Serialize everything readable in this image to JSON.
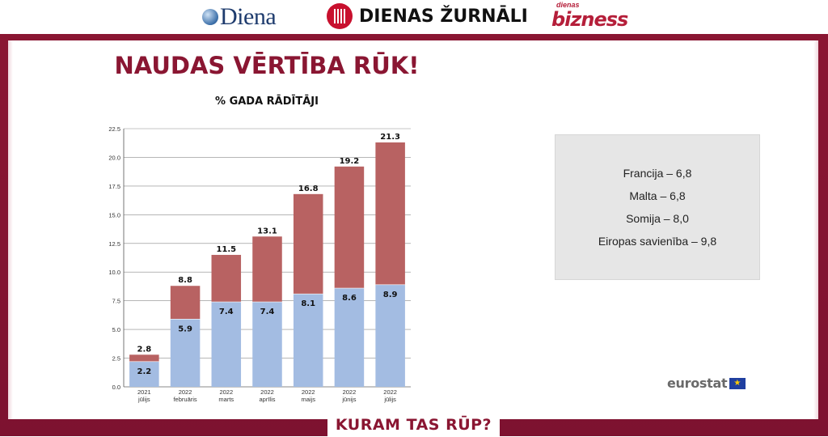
{
  "logos": {
    "diena": "Diena",
    "dienas_zurnali": "DIENAS ŽURNĀLI",
    "dienas_bizness_top": "dienas",
    "dienas_bizness": "bizness"
  },
  "headline": "NAUDAS VĒRTĪBA RŪK!",
  "footer_label": "KURAM TAS RŪP?",
  "info_box": {
    "lines": [
      "Francija – 6,8",
      "Malta – 6,8",
      "Somija – 8,0",
      "Eiropas savienība – 9,8"
    ]
  },
  "source": "eurostat",
  "colors": {
    "brand": "#8a1632",
    "bottom_series": "#a3bce2",
    "top_series": "#b86262"
  },
  "chart_data": {
    "type": "bar",
    "stacked": true,
    "title": "% GADA RĀDĪTĀJI",
    "categories": [
      [
        "2021",
        "jūlijs"
      ],
      [
        "2022",
        "februāris"
      ],
      [
        "2022",
        "marts"
      ],
      [
        "2022",
        "aprīlis"
      ],
      [
        "2022",
        "maijs"
      ],
      [
        "2022",
        "jūnijs"
      ],
      [
        "2022",
        "jūlijs"
      ]
    ],
    "series": [
      {
        "values": [
          2.2,
          5.9,
          7.4,
          7.4,
          8.1,
          8.6,
          8.9
        ],
        "color": "#a3bce2"
      },
      {
        "totals": [
          2.8,
          8.8,
          11.5,
          13.1,
          16.8,
          19.2,
          21.3
        ],
        "color": "#b86262"
      }
    ],
    "yticks": [
      "0.0",
      "2.5",
      "5.0",
      "7.5",
      "10.0",
      "12.5",
      "15.0",
      "17.5",
      "20.0",
      "22.5"
    ],
    "ylim": [
      0,
      22.5
    ],
    "grid": true
  }
}
